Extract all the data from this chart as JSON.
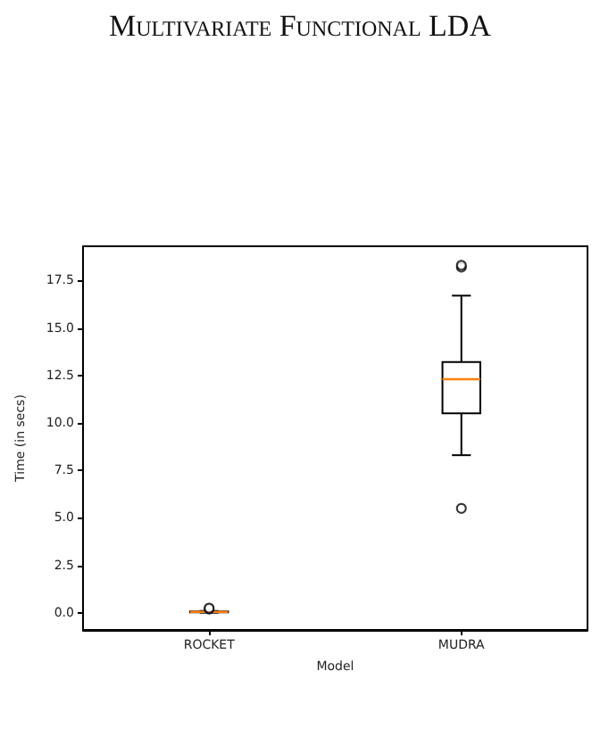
{
  "chart_data": {
    "type": "box",
    "title": "Multivariate Functional LDA",
    "xlabel": "Model",
    "ylabel": "Time (in secs)",
    "categories": [
      "ROCKET",
      "MUDRA"
    ],
    "series": [
      {
        "color": "#000000",
        "boxes": [
          {
            "low": 0.01,
            "q1": 0.03,
            "median": 0.05,
            "q3": 0.07,
            "high": 0.1,
            "outliers": [
              0.2,
              0.25
            ]
          },
          {
            "low": 8.3,
            "q1": 10.5,
            "median": 12.3,
            "q3": 13.2,
            "high": 16.7,
            "outliers": [
              5.5,
              18.2,
              18.3
            ]
          }
        ]
      }
    ],
    "ylim": [
      -0.9,
      19.3
    ],
    "yticks": [
      {
        "value": 0,
        "label": "0.0"
      },
      {
        "value": 2.5,
        "label": "2.5"
      },
      {
        "value": 5,
        "label": "5.0"
      },
      {
        "value": 7.5,
        "label": "7.5"
      },
      {
        "value": 10,
        "label": "10.0"
      },
      {
        "value": 12.5,
        "label": "12.5"
      },
      {
        "value": 15,
        "label": "15.0"
      },
      {
        "value": 17.5,
        "label": "17.5"
      }
    ],
    "grid": false
  }
}
